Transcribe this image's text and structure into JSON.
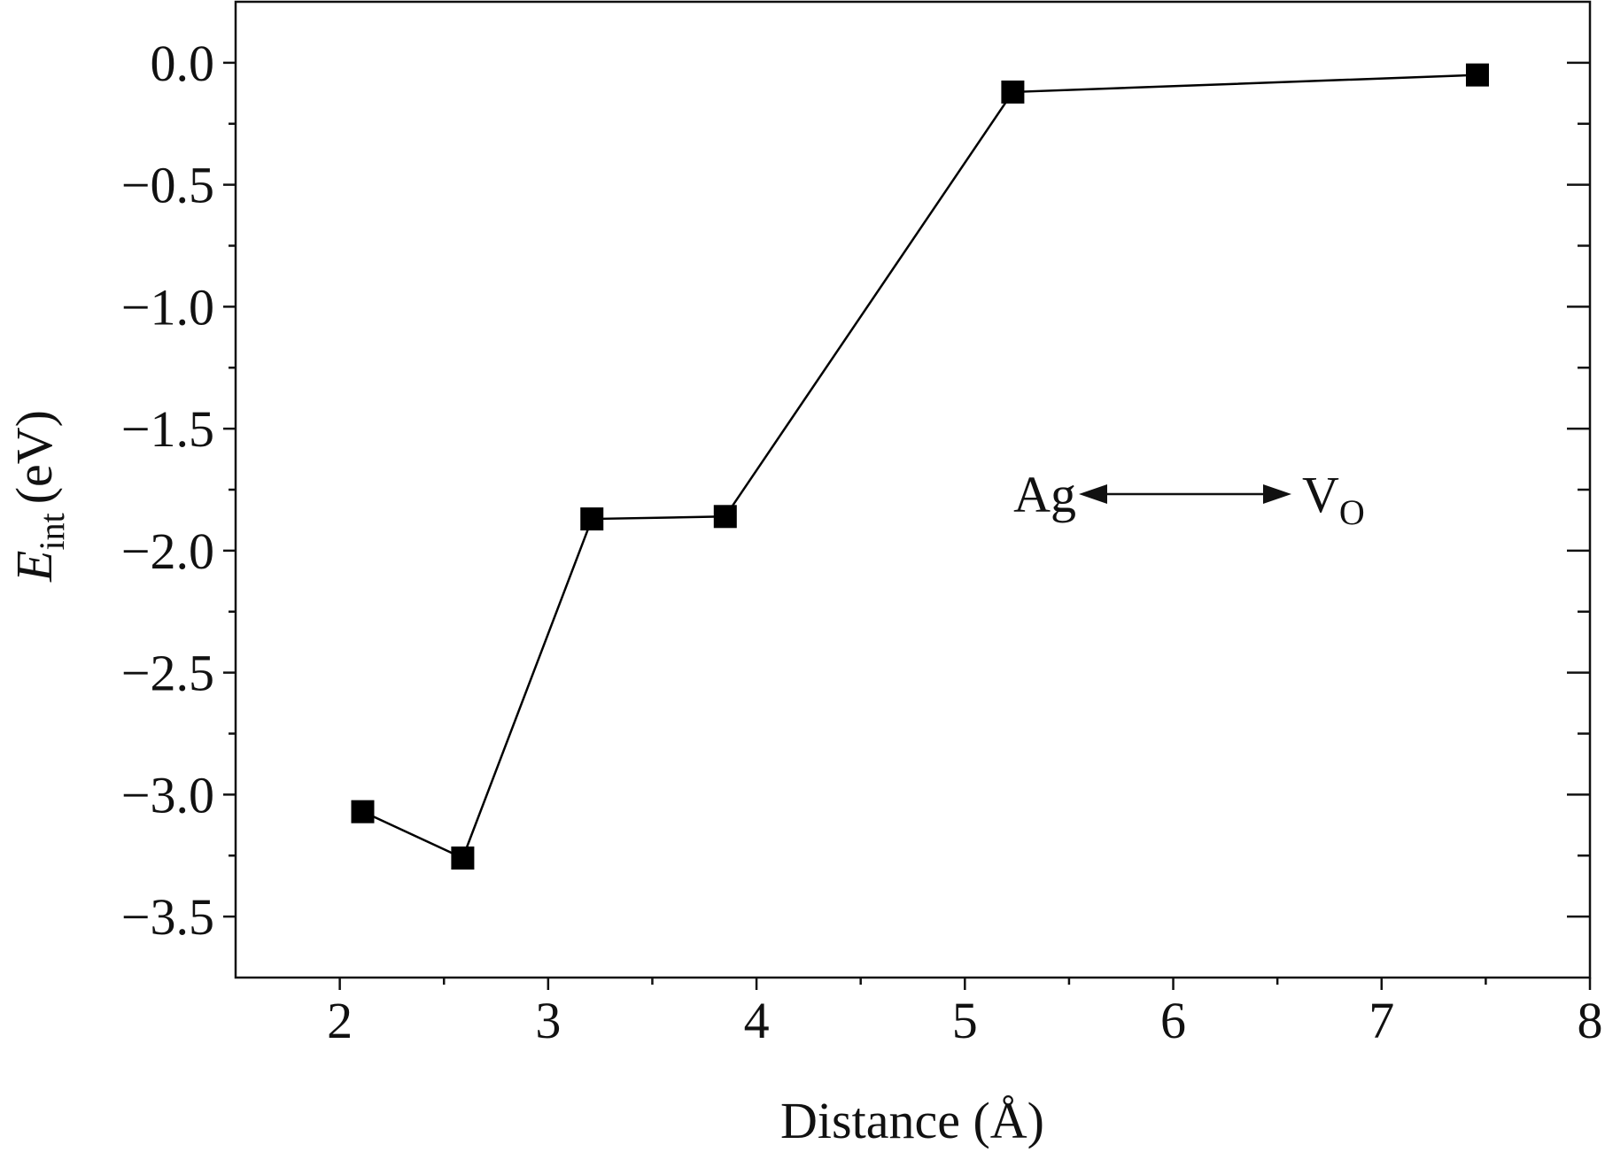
{
  "chart_data": {
    "type": "line",
    "x_label": "Distance (Å)",
    "y_label": {
      "symbol": "E",
      "subscript": "int",
      "unit": "(eV)"
    },
    "annotation": {
      "left": "Ag",
      "right": "V",
      "right_subscript": "O"
    },
    "series": [
      {
        "color": "#000000",
        "x": [
          2.11,
          2.59,
          3.21,
          3.85,
          5.23,
          7.46
        ],
        "values": [
          -3.07,
          -3.26,
          -1.87,
          -1.86,
          -0.12,
          -0.05
        ]
      }
    ],
    "xlim": [
      1.5,
      8
    ],
    "ylim": [
      -3.75,
      0.25
    ],
    "xticks": [
      2,
      3,
      4,
      5,
      6,
      7,
      8
    ],
    "yticks": [
      {
        "value": 0,
        "label": "0.0"
      },
      {
        "value": -0.5,
        "label": "−0.5"
      },
      {
        "value": -1,
        "label": "−1.0"
      },
      {
        "value": -1.5,
        "label": "−1.5"
      },
      {
        "value": -2,
        "label": "−2.0"
      },
      {
        "value": -2.5,
        "label": "−2.5"
      },
      {
        "value": -3,
        "label": "−3.0"
      },
      {
        "value": -3.5,
        "label": "−3.5"
      }
    ],
    "grid": false
  }
}
